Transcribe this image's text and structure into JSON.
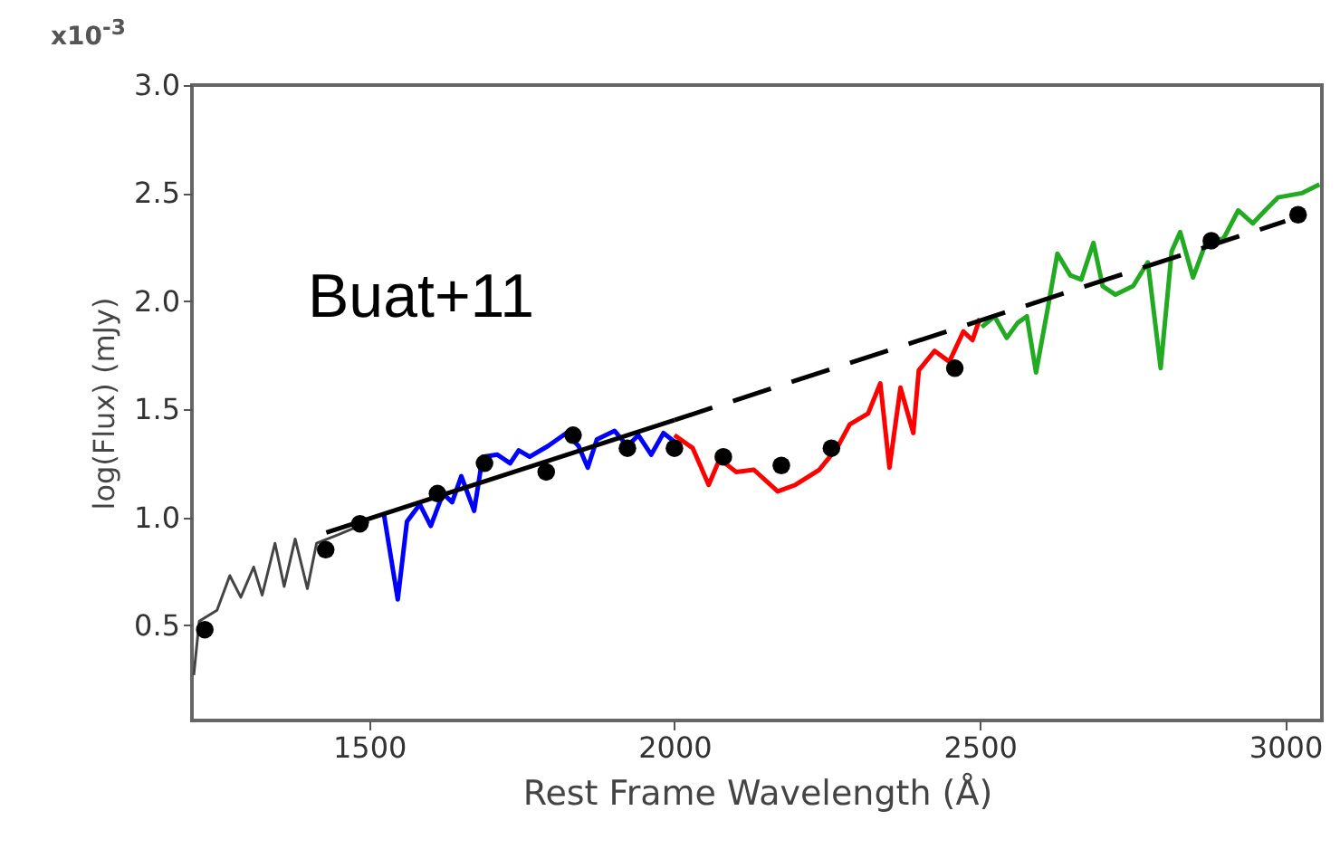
{
  "chart_data": {
    "type": "line",
    "xlabel": "Rest Frame Wavelength (Å)",
    "ylabel": "log(Flux) (mJy)",
    "annotations": [
      "x10$^{-3}$",
      "Buat+11"
    ],
    "xlim": [
      1210,
      3060
    ],
    "xticks": [
      1500,
      2000,
      2500,
      3000
    ],
    "ylim": [
      0.06,
      3.0
    ],
    "yticks": [
      0.5,
      {
        "value": 1.0,
        "label": "1.0"
      },
      1.5,
      {
        "value": 2.0,
        "label": "2.0"
      },
      2.5,
      {
        "value": 3.0,
        "label": "3.0"
      }
    ],
    "grid": false,
    "series": [
      {
        "color": "#444444",
        "x": [
          1213,
          1222,
          1251,
          1272,
          1290,
          1311,
          1325,
          1346,
          1361,
          1379,
          1399,
          1414,
          1450,
          1500
        ],
        "values": [
          0.27,
          0.52,
          0.57,
          0.73,
          0.63,
          0.77,
          0.64,
          0.88,
          0.68,
          0.9,
          0.67,
          0.88,
          0.92,
          0.98
        ]
      },
      {
        "color": "#0000ff",
        "x": [
          1524,
          1547,
          1562,
          1583,
          1601,
          1621,
          1636,
          1651,
          1672,
          1686,
          1710,
          1731,
          1745,
          1763,
          1793,
          1823,
          1843,
          1858,
          1873,
          1902,
          1923,
          1941,
          1962,
          1982,
          2000
        ],
        "values": [
          1.02,
          0.62,
          0.98,
          1.06,
          0.96,
          1.11,
          1.07,
          1.19,
          1.03,
          1.28,
          1.29,
          1.25,
          1.31,
          1.28,
          1.33,
          1.39,
          1.33,
          1.23,
          1.36,
          1.4,
          1.33,
          1.38,
          1.29,
          1.39,
          1.35
        ]
      },
      {
        "color": "#ff0000",
        "x": [
          2000,
          2030,
          2056,
          2074,
          2101,
          2130,
          2169,
          2198,
          2237,
          2266,
          2287,
          2317,
          2337,
          2352,
          2370,
          2391,
          2400,
          2426,
          2450,
          2473,
          2488,
          2500
        ],
        "values": [
          1.38,
          1.32,
          1.15,
          1.27,
          1.21,
          1.22,
          1.12,
          1.15,
          1.22,
          1.32,
          1.43,
          1.48,
          1.62,
          1.23,
          1.6,
          1.39,
          1.68,
          1.77,
          1.72,
          1.86,
          1.82,
          1.92
        ]
      },
      {
        "color": "#22aa22",
        "x": [
          2503,
          2524,
          2544,
          2562,
          2577,
          2592,
          2612,
          2627,
          2648,
          2666,
          2686,
          2701,
          2722,
          2751,
          2775,
          2796,
          2814,
          2828,
          2849,
          2870,
          2899,
          2923,
          2947,
          2967,
          2988,
          3027,
          3056
        ],
        "values": [
          1.88,
          1.93,
          1.83,
          1.9,
          1.93,
          1.67,
          1.98,
          2.22,
          2.12,
          2.1,
          2.27,
          2.07,
          2.03,
          2.07,
          2.18,
          1.69,
          2.23,
          2.32,
          2.11,
          2.27,
          2.29,
          2.42,
          2.36,
          2.42,
          2.48,
          2.5,
          2.54
        ]
      },
      {
        "color": "#000000",
        "line_style": "solid",
        "x": [
          1430,
          2000
        ],
        "values": [
          0.93,
          1.45
        ]
      },
      {
        "color": "#000000",
        "line_style": "dashed",
        "x": [
          2000,
          3000
        ],
        "values": [
          1.45,
          2.37
        ]
      },
      {
        "type": "scatter",
        "color": "#000000",
        "marker": "circle",
        "x": [
          1231,
          1429,
          1485,
          1612,
          1689,
          1790,
          1834,
          1923,
          2000,
          2080,
          2175,
          2257,
          2459,
          2879,
          3021
        ],
        "values": [
          0.48,
          0.85,
          0.97,
          1.11,
          1.25,
          1.21,
          1.38,
          1.32,
          1.32,
          1.28,
          1.24,
          1.32,
          1.69,
          2.28,
          2.4
        ]
      }
    ]
  }
}
